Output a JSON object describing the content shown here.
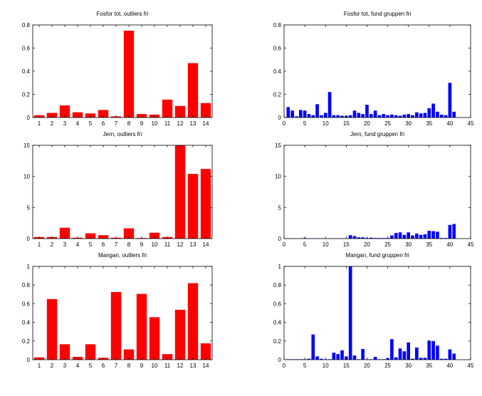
{
  "chart_data": [
    {
      "type": "bar",
      "title": "Fosfor tot, outliers fri",
      "color": "#ff0000",
      "x": [
        1,
        2,
        3,
        4,
        5,
        6,
        7,
        8,
        9,
        10,
        11,
        12,
        13,
        14
      ],
      "values": [
        0.02,
        0.04,
        0.105,
        0.045,
        0.035,
        0.065,
        0.01,
        0.75,
        0.03,
        0.025,
        0.155,
        0.1,
        0.47,
        0.125
      ],
      "xlim": [
        0.5,
        14.5
      ],
      "ylim": [
        0,
        0.8
      ],
      "xticks": [
        1,
        2,
        3,
        4,
        5,
        6,
        7,
        8,
        9,
        10,
        11,
        12,
        13,
        14
      ],
      "yticks": [
        0,
        0.2,
        0.4,
        0.6,
        0.8
      ],
      "ytick_labels": [
        "0",
        "0.2",
        "0.4",
        "0.6",
        "0.8"
      ],
      "grid": false
    },
    {
      "type": "bar",
      "title": "Fosfor tot, fund gruppen fri",
      "color": "#0000ff",
      "x": [
        1,
        2,
        3,
        4,
        5,
        6,
        7,
        8,
        9,
        10,
        11,
        12,
        13,
        14,
        15,
        16,
        17,
        18,
        19,
        20,
        21,
        22,
        23,
        24,
        25,
        26,
        27,
        28,
        29,
        30,
        31,
        32,
        33,
        34,
        35,
        36,
        37,
        38,
        39,
        40,
        41
      ],
      "values": [
        0.09,
        0.06,
        0.01,
        0.065,
        0.06,
        0.03,
        0.02,
        0.115,
        0.02,
        0.04,
        0.22,
        0.02,
        0.02,
        0.015,
        0.015,
        0.02,
        0.06,
        0.04,
        0.03,
        0.11,
        0.03,
        0.06,
        0.02,
        0.03,
        0.02,
        0.025,
        0.02,
        0.015,
        0.025,
        0.03,
        0.02,
        0.045,
        0.035,
        0.04,
        0.08,
        0.12,
        0.05,
        0.025,
        0.02,
        0.3,
        0.05
      ],
      "xlim": [
        0,
        45
      ],
      "ylim": [
        0,
        0.8
      ],
      "xticks": [
        0,
        5,
        10,
        15,
        20,
        25,
        30,
        35,
        40,
        45
      ],
      "yticks": [
        0,
        0.2,
        0.4,
        0.6,
        0.8
      ],
      "ytick_labels": [
        "0",
        "0.2",
        "0.4",
        "0.6",
        "0.8"
      ],
      "grid": false
    },
    {
      "type": "bar",
      "title": "Jern, outliers fri",
      "color": "#ff0000",
      "x": [
        1,
        2,
        3,
        4,
        5,
        6,
        7,
        8,
        9,
        10,
        11,
        12,
        13,
        14
      ],
      "values": [
        0.25,
        0.25,
        1.75,
        0.15,
        0.85,
        0.55,
        0.15,
        1.65,
        0.1,
        0.95,
        0.25,
        15,
        10.4,
        11.2
      ],
      "xlim": [
        0.5,
        14.5
      ],
      "ylim": [
        0,
        15
      ],
      "xticks": [
        1,
        2,
        3,
        4,
        5,
        6,
        7,
        8,
        9,
        10,
        11,
        12,
        13,
        14
      ],
      "yticks": [
        0,
        5,
        10,
        15
      ],
      "ytick_labels": [
        "0",
        "5",
        "10",
        "15"
      ],
      "grid": false
    },
    {
      "type": "bar",
      "title": "Jern, fund gruppen fri",
      "color": "#0000ff",
      "x": [
        1,
        2,
        3,
        4,
        5,
        6,
        7,
        8,
        9,
        10,
        11,
        12,
        13,
        14,
        15,
        16,
        17,
        18,
        19,
        20,
        21,
        22,
        23,
        24,
        25,
        26,
        27,
        28,
        29,
        30,
        31,
        32,
        33,
        34,
        35,
        36,
        37,
        38,
        39,
        40,
        41
      ],
      "values": [
        0.05,
        0.05,
        0.05,
        0.05,
        0.1,
        0.05,
        0.05,
        0.05,
        0.05,
        0.05,
        0.05,
        0.05,
        0.05,
        0.05,
        0.05,
        0.55,
        0.4,
        0.2,
        0.2,
        0.1,
        0.15,
        0.1,
        0.1,
        0.1,
        0.1,
        0.5,
        0.9,
        1.0,
        0.6,
        1.0,
        0.5,
        0.8,
        0.6,
        0.7,
        1.25,
        1.2,
        1.1,
        0.1,
        0.1,
        2.2,
        2.35
      ],
      "xlim": [
        0,
        45
      ],
      "ylim": [
        0,
        15
      ],
      "xticks": [
        0,
        5,
        10,
        15,
        20,
        25,
        30,
        35,
        40,
        45
      ],
      "yticks": [
        0,
        5,
        10,
        15
      ],
      "ytick_labels": [
        "0",
        "5",
        "10",
        "15"
      ],
      "grid": false
    },
    {
      "type": "bar",
      "title": "Mangan, outliers fri",
      "color": "#ff0000",
      "x": [
        1,
        2,
        3,
        4,
        5,
        6,
        7,
        8,
        9,
        10,
        11,
        12,
        13,
        14
      ],
      "values": [
        0.025,
        0.65,
        0.165,
        0.03,
        0.165,
        0.02,
        0.725,
        0.11,
        0.705,
        0.455,
        0.06,
        0.535,
        0.82,
        0.175
      ],
      "xlim": [
        0.5,
        14.5
      ],
      "ylim": [
        0,
        1
      ],
      "xticks": [
        1,
        2,
        3,
        4,
        5,
        6,
        7,
        8,
        9,
        10,
        11,
        12,
        13,
        14
      ],
      "yticks": [
        0,
        0.2,
        0.4,
        0.6,
        0.8,
        1
      ],
      "ytick_labels": [
        "0",
        "0.2",
        "0.4",
        "0.6",
        "0.8",
        "1"
      ],
      "grid": false
    },
    {
      "type": "bar",
      "title": "Mangan, fund gruppen fri",
      "color": "#0000ff",
      "x": [
        1,
        2,
        3,
        4,
        5,
        6,
        7,
        8,
        9,
        10,
        11,
        12,
        13,
        14,
        15,
        16,
        17,
        18,
        19,
        20,
        21,
        22,
        23,
        24,
        25,
        26,
        27,
        28,
        29,
        30,
        31,
        32,
        33,
        34,
        35,
        36,
        37,
        38,
        39,
        40,
        41
      ],
      "values": [
        0.005,
        0.005,
        0.005,
        0.005,
        0.005,
        0.01,
        0.27,
        0.035,
        0.01,
        0.005,
        0.005,
        0.075,
        0.06,
        0.1,
        0.035,
        1.0,
        0.045,
        0.005,
        0.115,
        0.005,
        0.005,
        0.03,
        0.005,
        0.005,
        0.015,
        0.22,
        0.025,
        0.12,
        0.09,
        0.185,
        0.01,
        0.13,
        0.02,
        0.02,
        0.205,
        0.2,
        0.15,
        0.01,
        0.01,
        0.11,
        0.065
      ],
      "xlim": [
        0,
        45
      ],
      "ylim": [
        0,
        1
      ],
      "xticks": [
        0,
        5,
        10,
        15,
        20,
        25,
        30,
        35,
        40,
        45
      ],
      "yticks": [
        0,
        0.2,
        0.4,
        0.6,
        0.8,
        1
      ],
      "ytick_labels": [
        "0",
        "0.2",
        "0.4",
        "0.6",
        "0.8",
        "1"
      ],
      "grid": false
    }
  ]
}
